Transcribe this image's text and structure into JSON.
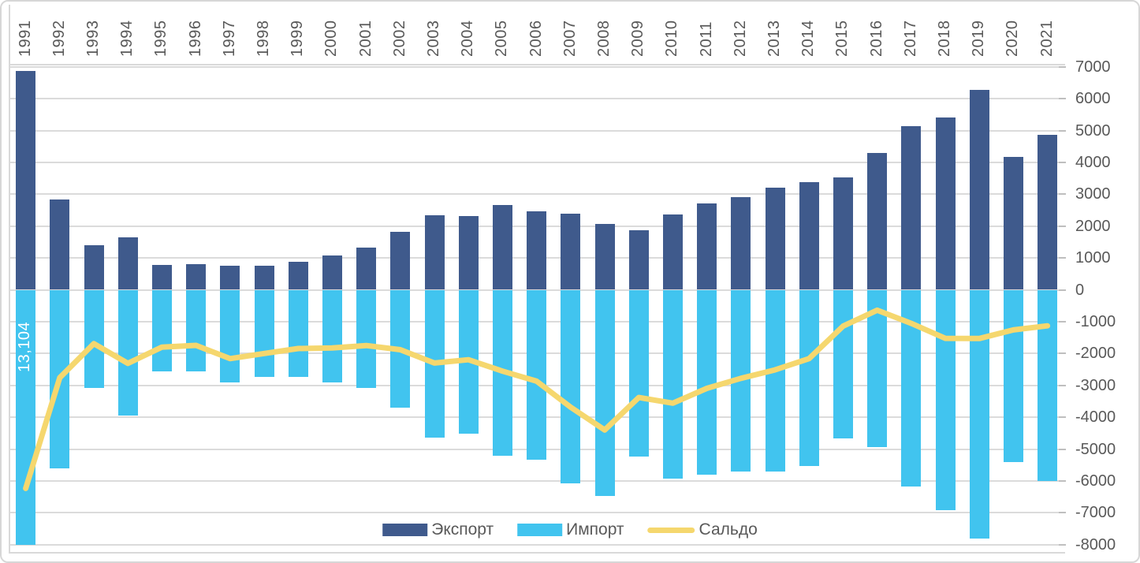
{
  "chart_data": {
    "type": "bar+line combo",
    "title": "",
    "categories": [
      "1991",
      "1992",
      "1993",
      "1994",
      "1995",
      "1996",
      "1997",
      "1998",
      "1999",
      "2000",
      "2001",
      "2002",
      "2003",
      "2004",
      "2005",
      "2006",
      "2007",
      "2008",
      "2009",
      "2010",
      "2011",
      "2012",
      "2013",
      "2014",
      "2015",
      "2016",
      "2017",
      "2018",
      "2019",
      "2020",
      "2021"
    ],
    "series": [
      {
        "name": "Экспорт",
        "type": "bar",
        "color": "#3f5a8c",
        "values": [
          6870,
          2840,
          1390,
          1650,
          770,
          815,
          745,
          745,
          885,
          1075,
          1330,
          1820,
          2330,
          2310,
          2650,
          2460,
          2380,
          2070,
          1860,
          2360,
          2705,
          2920,
          3200,
          3370,
          3530,
          4300,
          5130,
          5400,
          6280,
          4160,
          4865
        ]
      },
      {
        "name": "Импорт",
        "type": "bar",
        "color": "#41c4ef",
        "values": [
          -13104,
          -5600,
          -3080,
          -3960,
          -2570,
          -2560,
          -2905,
          -2745,
          -2730,
          -2900,
          -3080,
          -3700,
          -4630,
          -4505,
          -5205,
          -5330,
          -6065,
          -6470,
          -5240,
          -5920,
          -5800,
          -5700,
          -5715,
          -5530,
          -4670,
          -4940,
          -6185,
          -6925,
          -7810,
          -5420,
          -5995
        ]
      },
      {
        "name": "Сальдо",
        "type": "line",
        "color": "#f5d76e",
        "values": [
          -6234,
          -2760,
          -1690,
          -2310,
          -1800,
          -1745,
          -2160,
          -2000,
          -1845,
          -1825,
          -1750,
          -1880,
          -2300,
          -2195,
          -2555,
          -2870,
          -3685,
          -4400,
          -3380,
          -3560,
          -3095,
          -2780,
          -2515,
          -2160,
          -1140,
          -640,
          -1055,
          -1525,
          -1530,
          -1260,
          -1130
        ]
      }
    ],
    "yaxis": {
      "side": "right",
      "min": -8000,
      "max": 7000,
      "step": 1000,
      "ticks": [
        {
          "value": 7000,
          "label": "7000"
        },
        {
          "value": 6000,
          "label": "6000"
        },
        {
          "value": 5000,
          "label": "5000"
        },
        {
          "value": 4000,
          "label": "4000"
        },
        {
          "value": 3000,
          "label": "3000"
        },
        {
          "value": 2000,
          "label": "2000"
        },
        {
          "value": 1000,
          "label": "1000"
        },
        {
          "value": 0,
          "label": "0"
        },
        {
          "value": -1000,
          "label": "-1000"
        },
        {
          "value": -2000,
          "label": "-2000"
        },
        {
          "value": -3000,
          "label": "-3000"
        },
        {
          "value": -4000,
          "label": "-4000"
        },
        {
          "value": -5000,
          "label": "-5000"
        },
        {
          "value": -6000,
          "label": "-6000"
        },
        {
          "value": -7000,
          "label": "-7000"
        },
        {
          "value": -8000,
          "label": "-8000"
        }
      ],
      "grid": true
    },
    "xaxis": {
      "labels_position": "top",
      "labels_rotated": true
    },
    "legend": {
      "position": "bottom"
    },
    "annotations": [
      {
        "text": "13,104",
        "series": "Импорт",
        "category": "1991",
        "rotated": true,
        "color": "#ffffff"
      }
    ],
    "colors": {
      "export_bar": "#3f5a8c",
      "import_bar": "#41c4ef",
      "saldo_line": "#f5d76e",
      "gridline": "#dbdbdb",
      "axis_text": "#595959"
    }
  }
}
